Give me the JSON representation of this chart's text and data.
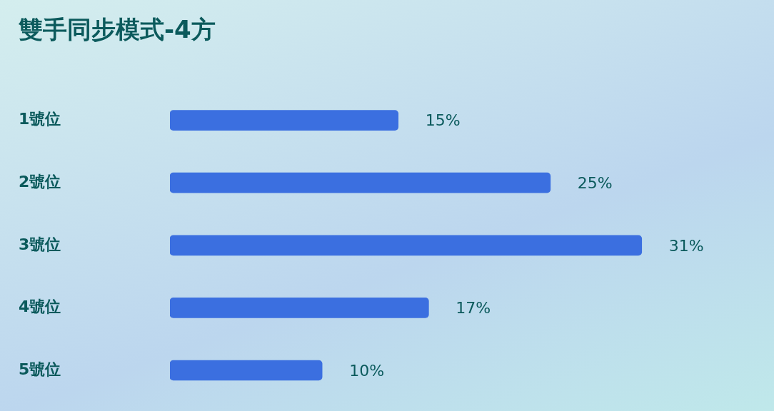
{
  "chart_data": {
    "type": "bar",
    "orientation": "horizontal",
    "title": "雙手同步模式-4方",
    "categories": [
      "1號位",
      "2號位",
      "3號位",
      "4號位",
      "5號位"
    ],
    "values": [
      15,
      25,
      31,
      17,
      10
    ],
    "value_labels": [
      "15%",
      "25%",
      "31%",
      "17%",
      "10%"
    ],
    "color": "#3b6fe0",
    "legend": false,
    "tick_labels": "y"
  }
}
